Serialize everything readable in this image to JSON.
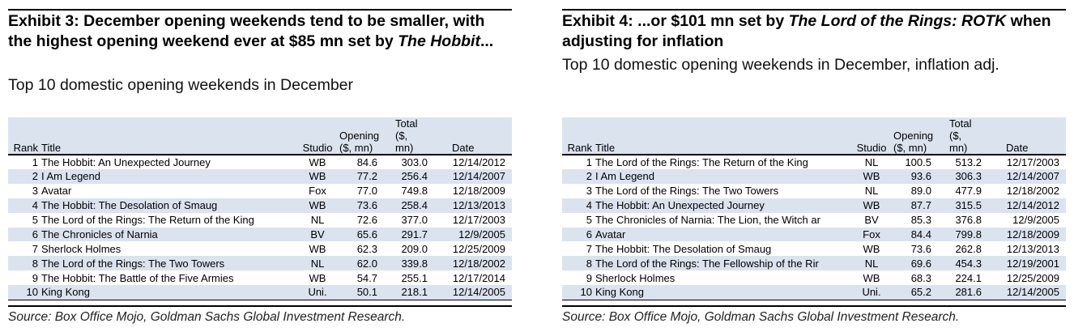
{
  "exhibit3": {
    "title_part1": "Exhibit 3: December opening weekends tend to be smaller, with the highest opening weekend ever at $85 mn set by ",
    "title_italic": "The Hobbit",
    "title_part2": "...",
    "subtitle": "Top 10 domestic opening weekends in December",
    "columns": [
      "Rank",
      "Title",
      "Studio",
      "Opening ($, mn)",
      "Total ($, mn)",
      "Date"
    ],
    "rows": [
      {
        "rank": "1",
        "title": "The Hobbit: An Unexpected Journey",
        "studio": "WB",
        "opening": "84.6",
        "total": "303.0",
        "date": "12/14/2012"
      },
      {
        "rank": "2",
        "title": "I Am Legend",
        "studio": "WB",
        "opening": "77.2",
        "total": "256.4",
        "date": "12/14/2007"
      },
      {
        "rank": "3",
        "title": "Avatar",
        "studio": "Fox",
        "opening": "77.0",
        "total": "749.8",
        "date": "12/18/2009"
      },
      {
        "rank": "4",
        "title": "The Hobbit: The Desolation of Smaug",
        "studio": "WB",
        "opening": "73.6",
        "total": "258.4",
        "date": "12/13/2013"
      },
      {
        "rank": "5",
        "title": "The Lord of the Rings: The Return of the King",
        "studio": "NL",
        "opening": "72.6",
        "total": "377.0",
        "date": "12/17/2003"
      },
      {
        "rank": "6",
        "title": "The Chronicles of Narnia",
        "studio": "BV",
        "opening": "65.6",
        "total": "291.7",
        "date": "12/9/2005"
      },
      {
        "rank": "7",
        "title": "Sherlock Holmes",
        "studio": "WB",
        "opening": "62.3",
        "total": "209.0",
        "date": "12/25/2009"
      },
      {
        "rank": "8",
        "title": "The Lord of the Rings: The Two Towers",
        "studio": "NL",
        "opening": "62.0",
        "total": "339.8",
        "date": "12/18/2002"
      },
      {
        "rank": "9",
        "title": "The Hobbit: The Battle of the Five Armies",
        "studio": "WB",
        "opening": "54.7",
        "total": "255.1",
        "date": "12/17/2014"
      },
      {
        "rank": "10",
        "title": "King Kong",
        "studio": "Uni.",
        "opening": "50.1",
        "total": "218.1",
        "date": "12/14/2005"
      }
    ],
    "source": "Source: Box Office Mojo, Goldman Sachs Global Investment Research."
  },
  "exhibit4": {
    "title_part1": "Exhibit 4: ...or $101 mn set by ",
    "title_italic": "The Lord of the Rings: ROTK",
    "title_part2": " when adjusting for inflation",
    "subtitle": "Top 10 domestic opening weekends in December, inflation adj.",
    "columns": [
      "Rank",
      "Title",
      "Studio",
      "Opening ($, mn)",
      "Total ($, mn)",
      "Date"
    ],
    "rows": [
      {
        "rank": "1",
        "title": "The Lord of the Rings: The Return of the King",
        "studio": "NL",
        "opening": "100.5",
        "total": "513.2",
        "date": "12/17/2003"
      },
      {
        "rank": "2",
        "title": "I Am Legend",
        "studio": "WB",
        "opening": "93.6",
        "total": "306.3",
        "date": "12/14/2007"
      },
      {
        "rank": "3",
        "title": "The Lord of the Rings: The Two Towers",
        "studio": "NL",
        "opening": "89.0",
        "total": "477.9",
        "date": "12/18/2002"
      },
      {
        "rank": "4",
        "title": "The Hobbit: An Unexpected Journey",
        "studio": "WB",
        "opening": "87.7",
        "total": "315.5",
        "date": "12/14/2012"
      },
      {
        "rank": "5",
        "title": "The Chronicles of Narnia: The Lion, the Witch ar",
        "studio": "BV",
        "opening": "85.3",
        "total": "376.8",
        "date": "12/9/2005"
      },
      {
        "rank": "6",
        "title": "Avatar",
        "studio": "Fox",
        "opening": "84.4",
        "total": "799.8",
        "date": "12/18/2009"
      },
      {
        "rank": "7",
        "title": "The Hobbit: The Desolation of Smaug",
        "studio": "WB",
        "opening": "73.6",
        "total": "262.8",
        "date": "12/13/2013"
      },
      {
        "rank": "8",
        "title": "The Lord of the Rings: The Fellowship of the Rir",
        "studio": "NL",
        "opening": "69.6",
        "total": "454.3",
        "date": "12/19/2001"
      },
      {
        "rank": "9",
        "title": "Sherlock Holmes",
        "studio": "WB",
        "opening": "68.3",
        "total": "224.1",
        "date": "12/25/2009"
      },
      {
        "rank": "10",
        "title": "King Kong",
        "studio": "Uni.",
        "opening": "65.2",
        "total": "281.6",
        "date": "12/14/2005"
      }
    ],
    "source": "Source: Box Office Mojo, Goldman Sachs Global Investment Research."
  },
  "colors": {
    "band": "#dbe3ef",
    "rule": "#000000"
  }
}
